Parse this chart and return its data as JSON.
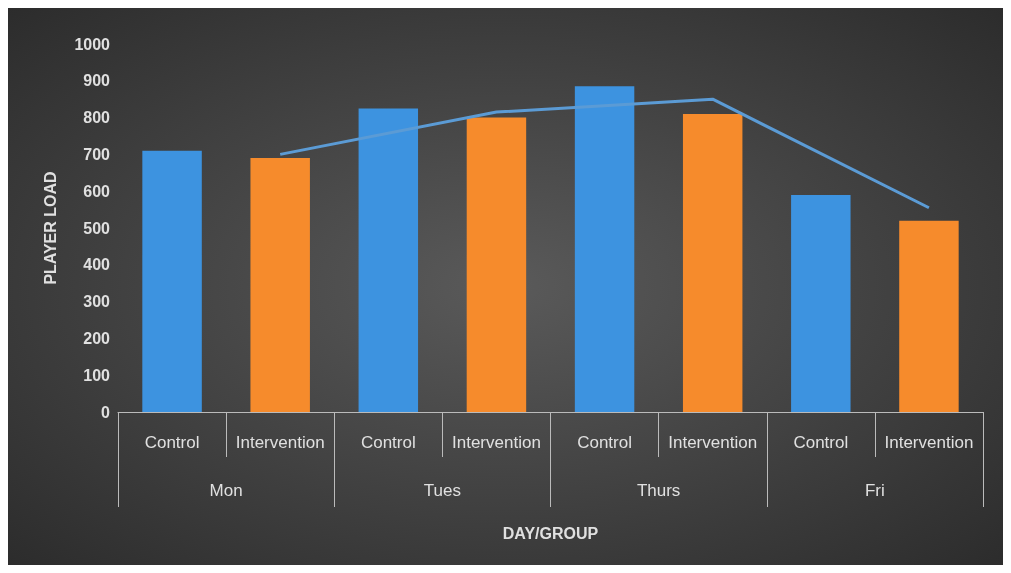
{
  "chart_data": {
    "type": "bar",
    "xlabel": "DAY/GROUP",
    "ylabel": "PLAYER LOAD",
    "categories": [
      "Control",
      "Intervention",
      "Control",
      "Intervention",
      "Control",
      "Intervention",
      "Control",
      "Intervention"
    ],
    "annotations": [
      "Mon",
      "Tues",
      "Thurs",
      "Fri"
    ],
    "series": [
      {
        "values": [
          710,
          690,
          825,
          800,
          885,
          810,
          590,
          520
        ],
        "colors": [
          "#3d93e0",
          "#f68b2c",
          "#3d93e0",
          "#f68b2c",
          "#3d93e0",
          "#f68b2c",
          "#3d93e0",
          "#f68b2c"
        ]
      },
      {
        "type": "line",
        "color": "#5b9bd5",
        "marker": "none",
        "values": [
          null,
          700,
          null,
          815,
          null,
          850,
          null,
          555
        ]
      }
    ],
    "ylim": [
      0,
      1000
    ],
    "yticks": [
      0,
      100,
      200,
      300,
      400,
      500,
      600,
      700,
      800,
      900,
      1000
    ],
    "grid": false
  }
}
